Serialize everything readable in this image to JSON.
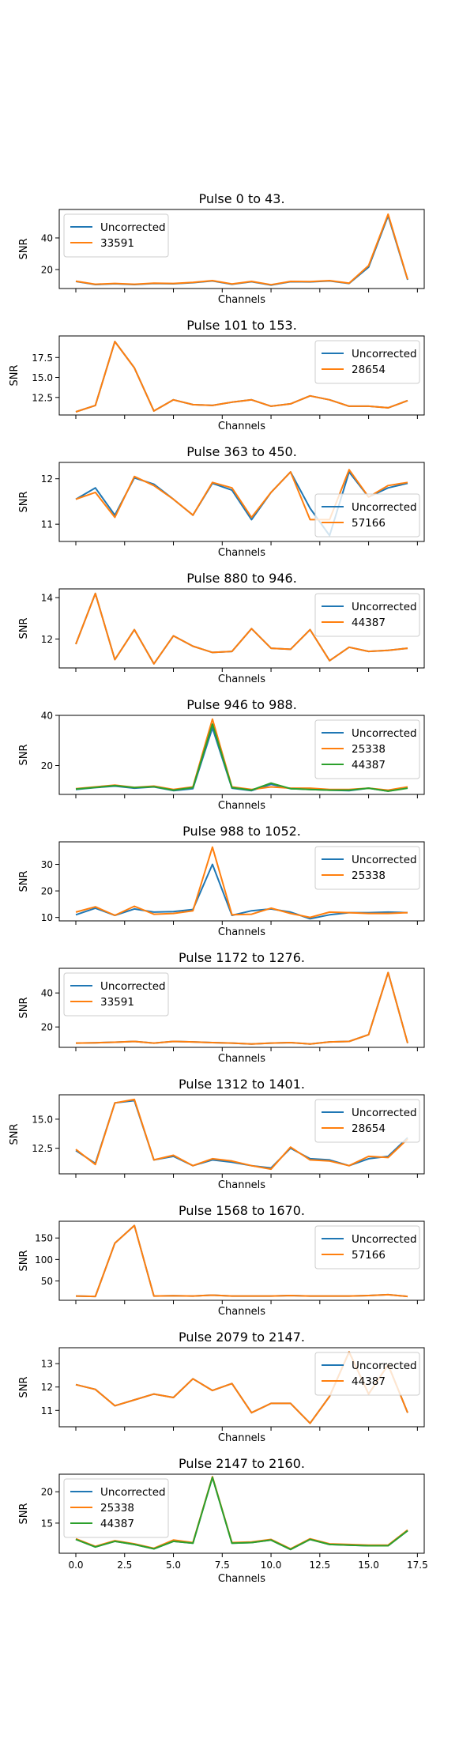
{
  "colors": {
    "Uncorrected": "#1f77b4",
    "33591": "#ff7f0e",
    "28654": "#ff7f0e",
    "57166": "#ff7f0e",
    "44387": "#ff7f0e",
    "25338": "#ff7f0e",
    "44387_third": "#2ca02c"
  },
  "chart_data": [
    {
      "type": "line",
      "title": "Pulse 0 to 43.",
      "xlabel": "Channels",
      "ylabel": "SNR",
      "xlim": [
        -0.85,
        17.85
      ],
      "ylim": [
        8,
        58
      ],
      "yticks": [
        20,
        40
      ],
      "ytick_labels": [
        "20",
        "40"
      ],
      "legend": "upper-left",
      "x": [
        0,
        1,
        2,
        3,
        4,
        5,
        6,
        7,
        8,
        9,
        10,
        11,
        12,
        13,
        14,
        15,
        16,
        17
      ],
      "series": [
        {
          "name": "Uncorrected",
          "color": "#1f77b4",
          "values": [
            12.5,
            10.5,
            11,
            10.5,
            11.2,
            11,
            11.7,
            12.8,
            10.7,
            12.3,
            10.2,
            12.3,
            12.2,
            12.8,
            11.2,
            21.5,
            54,
            13.5
          ]
        },
        {
          "name": "33591",
          "color": "#ff7f0e",
          "values": [
            12.6,
            10.7,
            11.2,
            10.7,
            11.4,
            11.2,
            11.9,
            13,
            10.9,
            12.5,
            10.4,
            12.5,
            12.4,
            13,
            11.4,
            22.5,
            55,
            13.8
          ]
        }
      ]
    },
    {
      "type": "line",
      "title": "Pulse 101 to 153.",
      "xlabel": "Channels",
      "ylabel": "SNR",
      "xlim": [
        -0.85,
        17.85
      ],
      "ylim": [
        10.3,
        20.2
      ],
      "yticks": [
        12.5,
        15,
        17.5
      ],
      "ytick_labels": [
        "12.5",
        "15.0",
        "17.5"
      ],
      "legend": "upper-right",
      "x": [
        0,
        1,
        2,
        3,
        4,
        5,
        6,
        7,
        8,
        9,
        10,
        11,
        12,
        13,
        14,
        15,
        16,
        17
      ],
      "series": [
        {
          "name": "Uncorrected",
          "color": "#1f77b4",
          "values": [
            10.7,
            11.5,
            19.5,
            16.2,
            10.8,
            12.2,
            11.6,
            11.5,
            11.9,
            12.2,
            11.4,
            11.7,
            12.7,
            12.2,
            11.4,
            11.4,
            11.2,
            12.1
          ]
        },
        {
          "name": "28654",
          "color": "#ff7f0e",
          "values": [
            10.7,
            11.5,
            19.5,
            16.2,
            10.8,
            12.2,
            11.6,
            11.5,
            11.9,
            12.2,
            11.4,
            11.7,
            12.7,
            12.2,
            11.4,
            11.4,
            11.2,
            12.1
          ]
        }
      ]
    },
    {
      "type": "line",
      "title": "Pulse 363 to 450.",
      "xlabel": "Channels",
      "ylabel": "SNR",
      "xlim": [
        -0.85,
        17.85
      ],
      "ylim": [
        10.62,
        12.36
      ],
      "yticks": [
        11,
        12
      ],
      "ytick_labels": [
        "11",
        "12"
      ],
      "legend": "lower-right",
      "x": [
        0,
        1,
        2,
        3,
        4,
        5,
        6,
        7,
        8,
        9,
        10,
        11,
        12,
        13,
        14,
        15,
        16,
        17
      ],
      "series": [
        {
          "name": "Uncorrected",
          "color": "#1f77b4",
          "values": [
            11.55,
            11.8,
            11.2,
            12.02,
            11.88,
            11.55,
            11.2,
            11.9,
            11.75,
            11.1,
            11.7,
            12.15,
            11.35,
            10.75,
            12.15,
            11.6,
            11.8,
            11.9
          ]
        },
        {
          "name": "57166",
          "color": "#ff7f0e",
          "values": [
            11.55,
            11.7,
            11.15,
            12.05,
            11.85,
            11.55,
            11.2,
            11.92,
            11.8,
            11.15,
            11.7,
            12.15,
            11.1,
            11.1,
            12.2,
            11.6,
            11.85,
            11.92
          ]
        }
      ]
    },
    {
      "type": "line",
      "title": "Pulse 880 to 946.",
      "xlabel": "Channels",
      "ylabel": "SNR",
      "xlim": [
        -0.85,
        17.85
      ],
      "ylim": [
        10.6,
        14.42
      ],
      "yticks": [
        12,
        14
      ],
      "ytick_labels": [
        "12",
        "14"
      ],
      "legend": "upper-right",
      "x": [
        0,
        1,
        2,
        3,
        4,
        5,
        6,
        7,
        8,
        9,
        10,
        11,
        12,
        13,
        14,
        15,
        16,
        17
      ],
      "series": [
        {
          "name": "Uncorrected",
          "color": "#1f77b4",
          "values": [
            11.75,
            14.2,
            11,
            12.45,
            10.8,
            12.15,
            11.65,
            11.35,
            11.4,
            12.5,
            11.55,
            11.5,
            12.45,
            10.95,
            11.6,
            11.4,
            11.45,
            11.55
          ]
        },
        {
          "name": "44387",
          "color": "#ff7f0e",
          "values": [
            11.75,
            14.2,
            11,
            12.45,
            10.8,
            12.15,
            11.65,
            11.35,
            11.4,
            12.5,
            11.55,
            11.5,
            12.45,
            10.95,
            11.6,
            11.4,
            11.45,
            11.55
          ]
        }
      ]
    },
    {
      "type": "line",
      "title": "Pulse 946 to 988.",
      "xlabel": "Channels",
      "ylabel": "SNR",
      "xlim": [
        -0.85,
        17.85
      ],
      "ylim": [
        8.5,
        40
      ],
      "yticks": [
        20,
        40
      ],
      "ytick_labels": [
        "20",
        "40"
      ],
      "legend": "upper-right",
      "x": [
        0,
        1,
        2,
        3,
        4,
        5,
        6,
        7,
        8,
        9,
        10,
        11,
        12,
        13,
        14,
        15,
        16,
        17
      ],
      "series": [
        {
          "name": "Uncorrected",
          "color": "#1f77b4",
          "values": [
            10.5,
            11.2,
            11.8,
            11,
            11.5,
            10,
            10.8,
            35,
            11,
            10,
            12.5,
            10.8,
            10.5,
            10.2,
            10,
            11,
            9.8,
            11.2
          ]
        },
        {
          "name": "25338",
          "color": "#ff7f0e",
          "values": [
            10.8,
            11.5,
            12.2,
            11.3,
            11.8,
            10.5,
            11.5,
            38.5,
            11.5,
            10.5,
            11.5,
            11,
            11,
            10.5,
            10.5,
            11,
            10.2,
            11.5
          ]
        },
        {
          "name": "44387",
          "color": "#2ca02c",
          "values": [
            10.6,
            11.3,
            12,
            11.2,
            11.6,
            10.2,
            11.2,
            36.5,
            11.2,
            10.2,
            13,
            10.8,
            10.5,
            10.2,
            10.2,
            11,
            9.8,
            11
          ]
        }
      ]
    },
    {
      "type": "line",
      "title": "Pulse 988 to 1052.",
      "xlabel": "Channels",
      "ylabel": "SNR",
      "xlim": [
        -0.85,
        17.85
      ],
      "ylim": [
        8.7,
        38.5
      ],
      "yticks": [
        10,
        20,
        30
      ],
      "ytick_labels": [
        "10",
        "20",
        "30"
      ],
      "legend": "upper-right",
      "x": [
        0,
        1,
        2,
        3,
        4,
        5,
        6,
        7,
        8,
        9,
        10,
        11,
        12,
        13,
        14,
        15,
        16,
        17
      ],
      "series": [
        {
          "name": "Uncorrected",
          "color": "#1f77b4",
          "values": [
            11,
            13.5,
            10.8,
            13.2,
            12,
            12.2,
            13,
            30,
            10.8,
            12.5,
            13.2,
            12,
            9.5,
            11,
            11.8,
            11.8,
            12,
            11.8
          ]
        },
        {
          "name": "25338",
          "color": "#ff7f0e",
          "values": [
            12,
            14,
            10.8,
            14.2,
            11.2,
            11.5,
            12.5,
            36.5,
            11,
            11.2,
            13.5,
            11.5,
            10,
            12,
            11.8,
            11.5,
            11.5,
            11.8
          ]
        }
      ]
    },
    {
      "type": "line",
      "title": "Pulse 1172 to 1276.",
      "xlabel": "Channels",
      "ylabel": "SNR",
      "xlim": [
        -0.85,
        17.85
      ],
      "ylim": [
        8,
        54.5
      ],
      "yticks": [
        20,
        40
      ],
      "ytick_labels": [
        "20",
        "40"
      ],
      "legend": "upper-left",
      "x": [
        0,
        1,
        2,
        3,
        4,
        5,
        6,
        7,
        8,
        9,
        10,
        11,
        12,
        13,
        14,
        15,
        16,
        17
      ],
      "series": [
        {
          "name": "Uncorrected",
          "color": "#1f77b4",
          "values": [
            10.5,
            10.7,
            11,
            11.5,
            10.5,
            11.5,
            11.2,
            10.8,
            10.5,
            10,
            10.5,
            10.8,
            10,
            11.2,
            11.5,
            15.5,
            52,
            10.5
          ]
        },
        {
          "name": "33591",
          "color": "#ff7f0e",
          "values": [
            10.5,
            10.7,
            11,
            11.5,
            10.5,
            11.5,
            11.2,
            10.8,
            10.5,
            10,
            10.5,
            10.8,
            10,
            11.2,
            11.5,
            15.5,
            52,
            10.5
          ]
        }
      ]
    },
    {
      "type": "line",
      "title": "Pulse 1312 to 1401.",
      "xlabel": "Channels",
      "ylabel": "SNR",
      "xlim": [
        -0.85,
        17.85
      ],
      "ylim": [
        10.3,
        17.1
      ],
      "yticks": [
        12.5,
        15
      ],
      "ytick_labels": [
        "12.5",
        "15.0"
      ],
      "legend": "upper-right",
      "x": [
        0,
        1,
        2,
        3,
        4,
        5,
        6,
        7,
        8,
        9,
        10,
        11,
        12,
        13,
        14,
        15,
        16,
        17
      ],
      "series": [
        {
          "name": "Uncorrected",
          "color": "#1f77b4",
          "values": [
            12.3,
            11.2,
            16.4,
            16.6,
            11.5,
            11.8,
            11,
            11.5,
            11.3,
            11,
            10.8,
            12.5,
            11.6,
            11.5,
            11,
            11.6,
            11.8,
            13.4
          ]
        },
        {
          "name": "28654",
          "color": "#ff7f0e",
          "values": [
            12.4,
            11.1,
            16.4,
            16.7,
            11.5,
            11.9,
            11,
            11.6,
            11.4,
            11,
            10.7,
            12.6,
            11.5,
            11.4,
            11,
            11.8,
            11.7,
            13.3
          ]
        }
      ]
    },
    {
      "type": "line",
      "title": "Pulse 1568 to 1670.",
      "xlabel": "Channels",
      "ylabel": "SNR",
      "xlim": [
        -0.85,
        17.85
      ],
      "ylim": [
        5,
        189
      ],
      "yticks": [
        50,
        100,
        150
      ],
      "ytick_labels": [
        "50",
        "100",
        "150"
      ],
      "legend": "upper-right",
      "x": [
        0,
        1,
        2,
        3,
        4,
        5,
        6,
        7,
        8,
        9,
        10,
        11,
        12,
        13,
        14,
        15,
        16,
        17
      ],
      "series": [
        {
          "name": "Uncorrected",
          "color": "#1f77b4",
          "values": [
            15,
            14,
            138,
            179,
            15,
            15.5,
            15,
            17,
            15,
            15,
            15,
            16,
            15,
            15,
            15,
            16,
            18,
            14
          ]
        },
        {
          "name": "57166",
          "color": "#ff7f0e",
          "values": [
            15,
            14,
            138,
            179,
            15,
            15.5,
            15,
            17,
            15,
            15,
            15,
            16,
            15,
            15,
            15,
            16,
            18,
            14
          ]
        }
      ]
    },
    {
      "type": "line",
      "title": "Pulse 2079 to 2147.",
      "xlabel": "Channels",
      "ylabel": "SNR",
      "xlim": [
        -0.85,
        17.85
      ],
      "ylim": [
        10.3,
        13.68
      ],
      "yticks": [
        11,
        12,
        13
      ],
      "ytick_labels": [
        "11",
        "12",
        "13"
      ],
      "legend": "upper-right",
      "x": [
        0,
        1,
        2,
        3,
        4,
        5,
        6,
        7,
        8,
        9,
        10,
        11,
        12,
        13,
        14,
        15,
        16,
        17
      ],
      "series": [
        {
          "name": "Uncorrected",
          "color": "#1f77b4",
          "values": [
            12.1,
            11.9,
            11.2,
            11.45,
            11.7,
            11.55,
            12.35,
            11.85,
            12.15,
            10.9,
            11.3,
            11.3,
            10.45,
            11.6,
            13.5,
            11.7,
            12.95,
            10.9
          ]
        },
        {
          "name": "44387",
          "color": "#ff7f0e",
          "values": [
            12.1,
            11.9,
            11.2,
            11.45,
            11.7,
            11.55,
            12.35,
            11.85,
            12.15,
            10.9,
            11.3,
            11.3,
            10.45,
            11.6,
            13.5,
            11.7,
            12.95,
            10.9
          ]
        }
      ]
    },
    {
      "type": "line",
      "title": "Pulse 2147 to 2160.",
      "xlabel": "Channels",
      "ylabel": "SNR",
      "xlim": [
        -0.85,
        17.85
      ],
      "ylim": [
        10.2,
        22.8
      ],
      "yticks": [
        15,
        20
      ],
      "ytick_labels": [
        "15",
        "20"
      ],
      "legend": "upper-left",
      "xticks": [
        0,
        2.5,
        5,
        7.5,
        10,
        12.5,
        15,
        17.5
      ],
      "xtick_labels": [
        "0.0",
        "2.5",
        "5.0",
        "7.5",
        "10.0",
        "12.5",
        "15.0",
        "17.5"
      ],
      "x": [
        0,
        1,
        2,
        3,
        4,
        5,
        6,
        7,
        8,
        9,
        10,
        11,
        12,
        13,
        14,
        15,
        16,
        17
      ],
      "series": [
        {
          "name": "Uncorrected",
          "color": "#1f77b4",
          "values": [
            12.4,
            11.2,
            12.1,
            11.6,
            10.9,
            12.1,
            11.8,
            22.3,
            11.8,
            11.9,
            12.3,
            10.8,
            12.4,
            11.6,
            11.5,
            11.4,
            11.4,
            13.8
          ]
        },
        {
          "name": "25338",
          "color": "#ff7f0e",
          "values": [
            12.5,
            11.3,
            12.2,
            11.7,
            11,
            12.3,
            11.9,
            22.4,
            11.9,
            12,
            12.4,
            10.9,
            12.5,
            11.7,
            11.6,
            11.5,
            11.5,
            13.9
          ]
        },
        {
          "name": "44387",
          "color": "#2ca02c",
          "values": [
            12.4,
            11.2,
            12.1,
            11.6,
            10.9,
            12.1,
            11.8,
            22.3,
            11.8,
            11.9,
            12.3,
            10.8,
            12.4,
            11.6,
            11.5,
            11.4,
            11.4,
            13.8
          ]
        }
      ]
    }
  ]
}
